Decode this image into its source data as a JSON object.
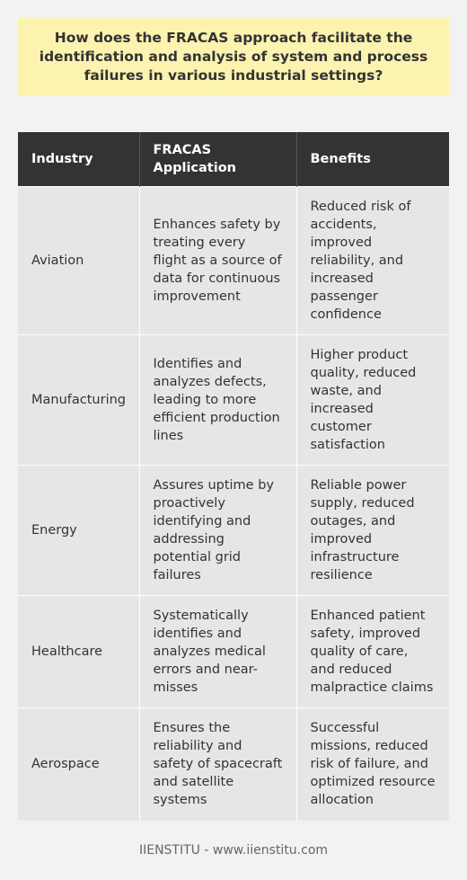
{
  "question": "How does the FRACAS approach facilitate the identification and analysis of system and process failures in various industrial settings?",
  "table": {
    "headers": [
      "Industry",
      "FRACAS Application",
      "Benefits"
    ],
    "rows": [
      {
        "industry": "Aviation",
        "application": "Enhances safety by treating every flight as a source of data for continuous improvement",
        "benefits": "Reduced risk of accidents, improved reliability, and increased passenger confidence"
      },
      {
        "industry": "Manufacturing",
        "application": "Identifies and analyzes defects, leading to more efficient production lines",
        "benefits": "Higher product quality, reduced waste, and increased customer satisfaction"
      },
      {
        "industry": "Energy",
        "application": "Assures uptime by proactively identifying and addressing potential grid failures",
        "benefits": "Reliable power supply, reduced outages, and improved infrastructure resilience"
      },
      {
        "industry": "Healthcare",
        "application": "Systematically identifies and analyzes medical errors and near-misses",
        "benefits": "Enhanced patient safety, improved quality of care, and reduced malpractice claims"
      },
      {
        "industry": "Aerospace",
        "application": "Ensures the reliability and safety of spacecraft and satellite systems",
        "benefits": "Successful missions, reduced risk of failure, and optimized resource allocation"
      }
    ]
  },
  "footer": "IIENSTITU - www.iienstitu.com",
  "colors": {
    "background": "#f2f2f2",
    "question_box": "#fcf3b0",
    "header_bg": "#333333",
    "cell_bg": "#e6e6e6",
    "text": "#333333"
  }
}
